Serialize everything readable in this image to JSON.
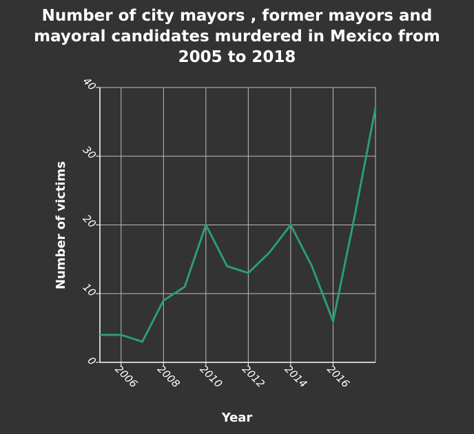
{
  "chart_data": {
    "type": "line",
    "title_lines": [
      "Number of city mayors , former mayors and",
      "mayoral candidates murdered in Mexico from",
      "2005 to 2018"
    ],
    "xlabel": "Year",
    "ylabel": "Number of victims",
    "xlim": [
      2005,
      2018
    ],
    "ylim": [
      0,
      40
    ],
    "x_ticks": [
      2006,
      2008,
      2010,
      2012,
      2014,
      2016
    ],
    "y_ticks": [
      0,
      10,
      20,
      30,
      40
    ],
    "x_tick_labels": [
      "2006",
      "2008",
      "2010",
      "2012",
      "2014",
      "2016"
    ],
    "y_tick_labels": [
      "0",
      "10",
      "20",
      "30",
      "40"
    ],
    "grid": true,
    "series": [
      {
        "color": "#2a9d78",
        "x": [
          2005,
          2006,
          2007,
          2008,
          2009,
          2010,
          2011,
          2012,
          2013,
          2014,
          2015,
          2016,
          2017,
          2018
        ],
        "y": [
          4,
          4,
          3,
          9,
          11,
          20,
          14,
          13,
          16,
          20,
          14,
          6,
          21,
          37
        ]
      }
    ],
    "colors": {
      "background": "#333333",
      "plot_background": "#333333",
      "grid": "#bdbdbd",
      "axis": "#ffffff",
      "text": "#ffffff"
    }
  }
}
